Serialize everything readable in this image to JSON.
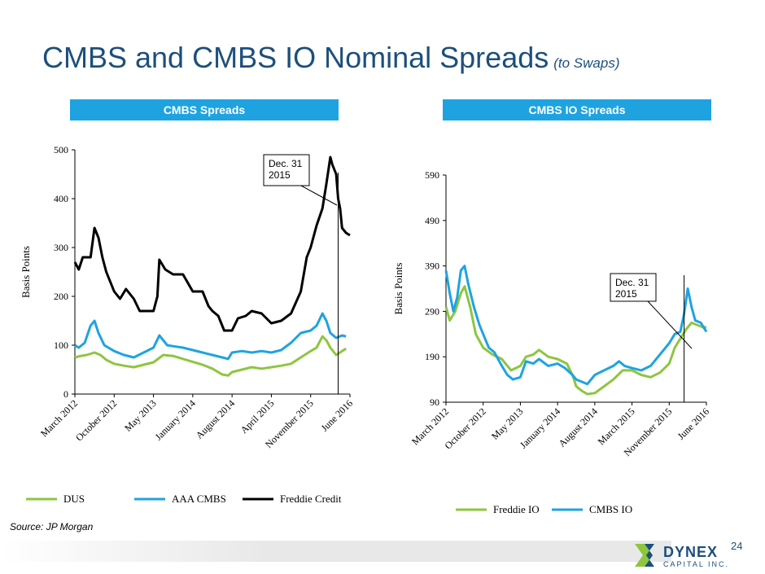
{
  "page": {
    "title": "CMBS and CMBS IO Nominal Spreads",
    "subtitle": "(to Swaps)",
    "source": "Source: JP Morgan",
    "page_number": "24",
    "logo_text": "DYNEX",
    "logo_sub": "CAPITAL INC."
  },
  "colors": {
    "title": "#1c4f7c",
    "header_bar": "#1fa3e0",
    "green": "#8dc63f",
    "blue": "#1fa3e0",
    "black": "#000000"
  },
  "chart_data": [
    {
      "type": "line",
      "header": "CMBS Spreads",
      "ylabel": "Basis Points",
      "ylim": [
        0,
        500
      ],
      "yticks": [
        "0",
        "100",
        "200",
        "300",
        "400",
        "500"
      ],
      "x_tick_labels": [
        "March 2012",
        "October 2012",
        "May 2013",
        "January 2014",
        "August 2014",
        "April 2015",
        "November 2015",
        "June 2016"
      ],
      "annotation": "Dec. 31 2015",
      "series": [
        {
          "name": "DUS",
          "color": "#8dc63f",
          "points": [
            [
              0,
              75
            ],
            [
              0.3,
              78
            ],
            [
              0.6,
              80
            ],
            [
              1,
              85
            ],
            [
              1.3,
              80
            ],
            [
              1.6,
              70
            ],
            [
              2,
              62
            ],
            [
              2.5,
              58
            ],
            [
              3,
              55
            ],
            [
              3.5,
              60
            ],
            [
              4,
              65
            ],
            [
              4.5,
              80
            ],
            [
              5,
              78
            ],
            [
              5.5,
              72
            ],
            [
              6,
              66
            ],
            [
              6.5,
              60
            ],
            [
              7,
              52
            ],
            [
              7.5,
              40
            ],
            [
              7.8,
              38
            ],
            [
              8,
              45
            ],
            [
              8.5,
              50
            ],
            [
              9,
              55
            ],
            [
              9.5,
              52
            ],
            [
              10,
              55
            ],
            [
              10.5,
              58
            ],
            [
              11,
              62
            ],
            [
              11.5,
              75
            ],
            [
              12,
              88
            ],
            [
              12.3,
              95
            ],
            [
              12.6,
              118
            ],
            [
              12.8,
              110
            ],
            [
              13,
              95
            ],
            [
              13.3,
              80
            ],
            [
              13.6,
              88
            ],
            [
              13.8,
              93
            ]
          ]
        },
        {
          "name": "AAA CMBS",
          "color": "#1fa3e0",
          "points": [
            [
              0,
              100
            ],
            [
              0.2,
              95
            ],
            [
              0.5,
              105
            ],
            [
              0.8,
              140
            ],
            [
              1,
              150
            ],
            [
              1.2,
              125
            ],
            [
              1.5,
              100
            ],
            [
              2,
              88
            ],
            [
              2.5,
              80
            ],
            [
              3,
              75
            ],
            [
              3.5,
              85
            ],
            [
              4,
              95
            ],
            [
              4.3,
              120
            ],
            [
              4.7,
              100
            ],
            [
              5,
              98
            ],
            [
              5.5,
              95
            ],
            [
              6,
              90
            ],
            [
              6.5,
              85
            ],
            [
              7,
              80
            ],
            [
              7.5,
              75
            ],
            [
              7.8,
              72
            ],
            [
              8,
              85
            ],
            [
              8.5,
              88
            ],
            [
              9,
              85
            ],
            [
              9.5,
              88
            ],
            [
              10,
              85
            ],
            [
              10.5,
              90
            ],
            [
              11,
              105
            ],
            [
              11.5,
              125
            ],
            [
              12,
              130
            ],
            [
              12.3,
              140
            ],
            [
              12.6,
              165
            ],
            [
              12.8,
              150
            ],
            [
              13,
              125
            ],
            [
              13.3,
              115
            ],
            [
              13.6,
              120
            ],
            [
              13.8,
              118
            ]
          ]
        },
        {
          "name": "Freddie Credit",
          "color": "#000000",
          "points": [
            [
              0,
              270
            ],
            [
              0.2,
              255
            ],
            [
              0.4,
              280
            ],
            [
              0.8,
              280
            ],
            [
              1,
              340
            ],
            [
              1.2,
              320
            ],
            [
              1.4,
              280
            ],
            [
              1.6,
              250
            ],
            [
              2,
              210
            ],
            [
              2.3,
              195
            ],
            [
              2.6,
              215
            ],
            [
              3,
              195
            ],
            [
              3.3,
              170
            ],
            [
              3.7,
              170
            ],
            [
              4,
              170
            ],
            [
              4.2,
              200
            ],
            [
              4.3,
              275
            ],
            [
              4.6,
              255
            ],
            [
              5,
              245
            ],
            [
              5.5,
              245
            ],
            [
              6,
              210
            ],
            [
              6.5,
              210
            ],
            [
              6.8,
              180
            ],
            [
              7,
              170
            ],
            [
              7.3,
              160
            ],
            [
              7.6,
              130
            ],
            [
              8,
              130
            ],
            [
              8.3,
              155
            ],
            [
              8.7,
              160
            ],
            [
              9,
              170
            ],
            [
              9.5,
              165
            ],
            [
              10,
              145
            ],
            [
              10.5,
              150
            ],
            [
              11,
              165
            ],
            [
              11.5,
              210
            ],
            [
              11.8,
              280
            ],
            [
              12,
              300
            ],
            [
              12.3,
              345
            ],
            [
              12.6,
              380
            ],
            [
              12.8,
              430
            ],
            [
              13,
              485
            ],
            [
              13.1,
              470
            ],
            [
              13.3,
              450
            ],
            [
              13.4,
              400
            ],
            [
              13.5,
              380
            ],
            [
              13.6,
              340
            ],
            [
              13.8,
              330
            ],
            [
              14,
              325
            ]
          ]
        }
      ]
    },
    {
      "type": "line",
      "header": "CMBS IO Spreads",
      "ylabel": "Basis Points",
      "ylim": [
        90,
        590
      ],
      "yticks": [
        "90",
        "190",
        "290",
        "390",
        "490",
        "590"
      ],
      "x_tick_labels": [
        "March 2012",
        "October 2012",
        "May 2013",
        "January 2014",
        "August 2014",
        "March 2015",
        "November 2015",
        "June 2016"
      ],
      "annotation": "Dec. 31 2015",
      "series": [
        {
          "name": "Freddie IO",
          "color": "#8dc63f",
          "points": [
            [
              0,
              300
            ],
            [
              0.2,
              270
            ],
            [
              0.5,
              290
            ],
            [
              0.8,
              330
            ],
            [
              1,
              345
            ],
            [
              1.3,
              300
            ],
            [
              1.6,
              240
            ],
            [
              2,
              210
            ],
            [
              2.5,
              195
            ],
            [
              3,
              185
            ],
            [
              3.5,
              160
            ],
            [
              4,
              170
            ],
            [
              4.3,
              190
            ],
            [
              4.7,
              195
            ],
            [
              5,
              205
            ],
            [
              5.5,
              190
            ],
            [
              6,
              185
            ],
            [
              6.5,
              175
            ],
            [
              6.8,
              150
            ],
            [
              7,
              125
            ],
            [
              7.3,
              115
            ],
            [
              7.6,
              108
            ],
            [
              8,
              110
            ],
            [
              8.5,
              125
            ],
            [
              9,
              140
            ],
            [
              9.5,
              160
            ],
            [
              10,
              160
            ],
            [
              10.5,
              150
            ],
            [
              11,
              145
            ],
            [
              11.5,
              155
            ],
            [
              12,
              175
            ],
            [
              12.3,
              210
            ],
            [
              12.6,
              230
            ],
            [
              12.9,
              250
            ],
            [
              13.2,
              265
            ],
            [
              13.5,
              260
            ],
            [
              13.8,
              255
            ],
            [
              14,
              255
            ]
          ]
        },
        {
          "name": "CMBS IO",
          "color": "#1fa3e0",
          "points": [
            [
              0,
              380
            ],
            [
              0.2,
              330
            ],
            [
              0.4,
              290
            ],
            [
              0.6,
              320
            ],
            [
              0.8,
              380
            ],
            [
              1,
              390
            ],
            [
              1.2,
              350
            ],
            [
              1.5,
              300
            ],
            [
              1.8,
              260
            ],
            [
              2,
              240
            ],
            [
              2.3,
              210
            ],
            [
              2.6,
              200
            ],
            [
              3,
              170
            ],
            [
              3.3,
              150
            ],
            [
              3.6,
              140
            ],
            [
              4,
              145
            ],
            [
              4.3,
              180
            ],
            [
              4.7,
              175
            ],
            [
              5,
              185
            ],
            [
              5.5,
              170
            ],
            [
              6,
              175
            ],
            [
              6.4,
              165
            ],
            [
              6.8,
              150
            ],
            [
              7,
              140
            ],
            [
              7.3,
              135
            ],
            [
              7.6,
              130
            ],
            [
              8,
              150
            ],
            [
              8.5,
              160
            ],
            [
              9,
              170
            ],
            [
              9.3,
              180
            ],
            [
              9.6,
              170
            ],
            [
              10,
              165
            ],
            [
              10.5,
              160
            ],
            [
              11,
              170
            ],
            [
              11.5,
              195
            ],
            [
              12,
              220
            ],
            [
              12.3,
              240
            ],
            [
              12.6,
              245
            ],
            [
              12.8,
              285
            ],
            [
              13,
              340
            ],
            [
              13.2,
              300
            ],
            [
              13.4,
              270
            ],
            [
              13.7,
              265
            ],
            [
              14,
              245
            ]
          ]
        }
      ]
    }
  ]
}
